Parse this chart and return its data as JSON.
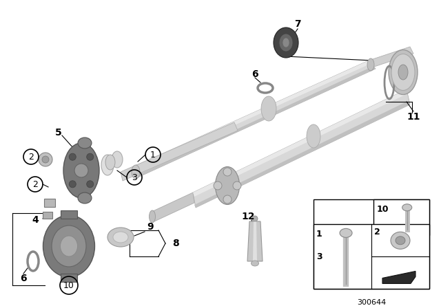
{
  "bg_color": "#ffffff",
  "part_number": "300644",
  "shaft1_color": "#d4d4d4",
  "shaft1_edge": "#aaaaaa",
  "shaft2_color": "#d4d4d4",
  "shaft2_edge": "#aaaaaa",
  "dark_gray": "#8a8a8a",
  "mid_gray": "#b0b0b0",
  "light_gray": "#e0e0e0",
  "dark_part": "#6a6a6a",
  "black": "#111111"
}
